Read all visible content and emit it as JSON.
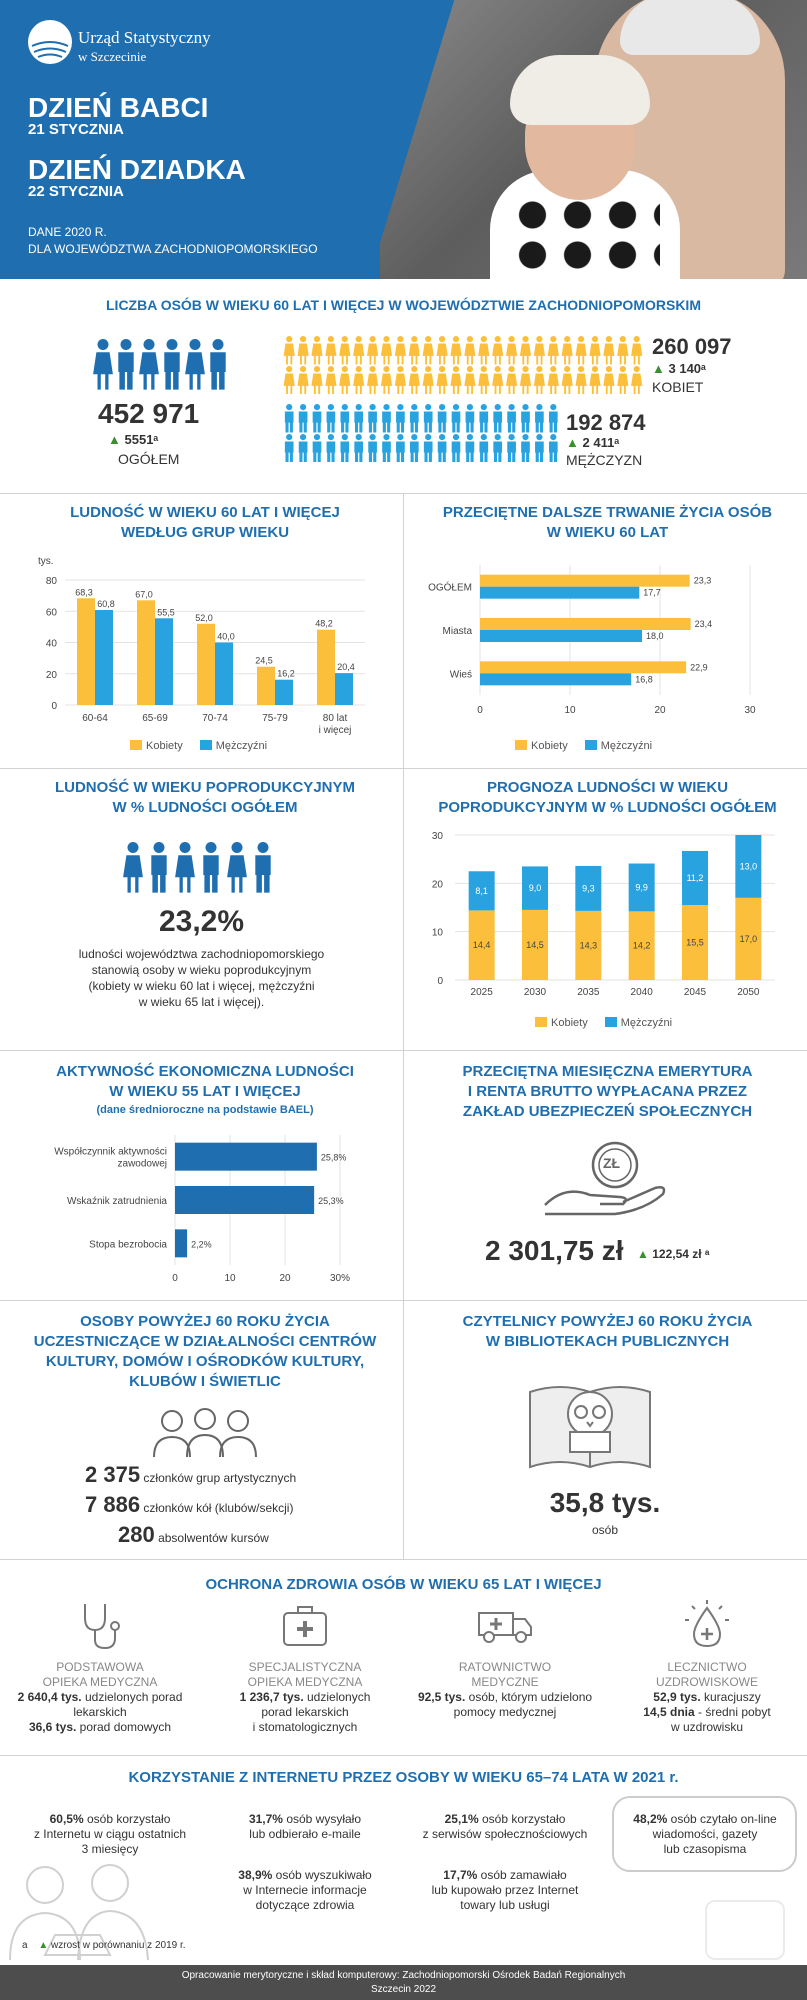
{
  "header": {
    "logo_line1": "Urząd Statystyczny",
    "logo_line2": "w Szczecinie",
    "title1": "DZIEŃ BABCI",
    "date1": "21 STYCZNIA",
    "title2": "DZIEŃ DZIADKA",
    "date2": "22 STYCZNIA",
    "data_line1": "DANE 2020 R.",
    "data_line2": "DLA WOJEWÓDZTWA ZACHODNIOPOMORSKIEGO"
  },
  "colors": {
    "blue": "#1f6fb0",
    "yellow": "#fbbf3b",
    "cyan": "#29a3e0",
    "green": "#3a8f2e"
  },
  "population": {
    "title": "LICZBA OSÓB W WIEKU 60 LAT I WIĘCEJ W WOJEWÓDZTWIE ZACHODNIOPOMORSKIM",
    "total": "452 971",
    "total_change": "5551ᵃ",
    "total_label": "OGÓŁEM",
    "women": "260 097",
    "women_change": "3 140ᵃ",
    "women_label": "KOBIET",
    "men": "192 874",
    "men_change": "2 411ᵃ",
    "men_label": "MĘŻCZYZN"
  },
  "age_groups": {
    "title_l1": "LUDNOŚĆ W WIEKU 60 LAT I WIĘCEJ",
    "title_l2": "WEDŁUG GRUP WIEKU",
    "unit": "tys.",
    "legend_women": "Kobiety",
    "legend_men": "Mężczyźni"
  },
  "life_exp": {
    "title_l1": "PRZECIĘTNE DALSZE TRWANIE ŻYCIA OSÓB",
    "title_l2": "W WIEKU 60 LAT",
    "legend_women": "Kobiety",
    "legend_men": "Mężczyźni"
  },
  "post_working": {
    "title_l1": "LUDNOŚĆ W WIEKU POPRODUKCYJNYM",
    "title_l2": "W % LUDNOŚCI OGÓŁEM",
    "value": "23,2%",
    "desc_l1": "ludności województwa zachodniopomorskiego",
    "desc_l2": "stanowią osoby w wieku poprodukcyjnym",
    "desc_l3": "(kobiety w wieku 60 lat i więcej, mężczyźni",
    "desc_l4": "w wieku 65 lat i więcej)."
  },
  "forecast": {
    "title_l1": "PROGNOZA LUDNOŚCI W WIEKU",
    "title_l2": "POPRODUKCYJNYM W % LUDNOŚCI OGÓŁEM",
    "legend_women": "Kobiety",
    "legend_men": "Mężczyźni"
  },
  "activity": {
    "title_l1": "AKTYWNOŚĆ EKONOMICZNA LUDNOŚCI",
    "title_l2": "W WIEKU 55 LAT I WIĘCEJ",
    "subtitle": "(dane średnioroczne na podstawie BAEL)"
  },
  "pension": {
    "title_l1": "PRZECIĘTNA MIESIĘCZNA EMERYTURA",
    "title_l2": "I RENTA BRUTTO WYPŁACANA PRZEZ",
    "title_l3": "ZAKŁAD UBEZPIECZEŃ SPOŁECZNYCH",
    "coin": "ZŁ",
    "value": "2 301,75 zł",
    "change": "122,54 zł ᵃ"
  },
  "culture": {
    "title_l1": "OSOBY POWYŻEJ 60 ROKU ŻYCIA",
    "title_l2": "UCZESTNICZĄCE W DZIAŁALNOŚCI CENTRÓW",
    "title_l3": "KULTURY, DOMÓW I OŚRODKÓW KULTURY,",
    "title_l4": "KLUBÓW I ŚWIETLIC",
    "r1_num": "2 375",
    "r1_txt": "członków grup artystycznych",
    "r2_num": "7 886",
    "r2_txt": "członków kół (klubów/sekcji)",
    "r3_num": "280",
    "r3_txt": "absolwentów kursów"
  },
  "library": {
    "title_l1": "CZYTELNICY POWYŻEJ 60 ROKU ŻYCIA",
    "title_l2": "W BIBLIOTEKACH PUBLICZNYCH",
    "value": "35,8 tys.",
    "unit": "osób"
  },
  "health": {
    "title": "OCHRONA ZDROWIA OSÓB W WIEKU 65 LAT I WIĘCEJ",
    "c1_t1": "PODSTAWOWA",
    "c1_t2": "OPIEKA MEDYCZNA",
    "c1_l1b": "2 640,4 tys.",
    "c1_l1": " udzielonych porad",
    "c1_l2": "lekarskich",
    "c1_l3b": "36,6 tys.",
    "c1_l3": " porad domowych",
    "c2_t1": "SPECJALISTYCZNA",
    "c2_t2": "OPIEKA MEDYCZNA",
    "c2_l1b": "1 236,7 tys.",
    "c2_l1": " udzielonych",
    "c2_l2": "porad lekarskich",
    "c2_l3": "i stomatologicznych",
    "c3_t1": "RATOWNICTWO",
    "c3_t2": "MEDYCZNE",
    "c3_l1b": "92,5 tys.",
    "c3_l1": " osób, którym udzielono",
    "c3_l2": "pomocy medycznej",
    "c4_t1": "LECZNICTWO",
    "c4_t2": "UZDROWISKOWE",
    "c4_l1b": "52,9 tys.",
    "c4_l1": " kuracjuszy",
    "c4_l2b": "14,5 dnia",
    "c4_l2": " - średni pobyt",
    "c4_l3": "w uzdrowisku"
  },
  "internet": {
    "title": "KORZYSTANIE Z INTERNETU PRZEZ OSOBY W WIEKU 65–74 LATA W 2021 r.",
    "i1b": "60,5%",
    "i1": " osób korzystało",
    "i1_l2": "z Internetu w ciągu ostatnich",
    "i1_l3": "3 miesięcy",
    "i2b": "31,7%",
    "i2": " osób wysyłało",
    "i2_l2": "lub odbierało e-maile",
    "i3b": "25,1%",
    "i3": " osób korzystało",
    "i3_l2": "z serwisów społecznościowych",
    "i4b": "48,2%",
    "i4": " osób czytało on-line",
    "i4_l2": "wiadomości, gazety",
    "i4_l3": "lub czasopisma",
    "i5b": "38,9%",
    "i5": " osób wyszukiwało",
    "i5_l2": "w Internecie informacje",
    "i5_l3": "dotyczące zdrowia",
    "i6b": "17,7%",
    "i6": " osób zamawiało",
    "i6_l2": "lub kupowało przez Internet",
    "i6_l3": "towary lub usługi"
  },
  "footnote": {
    "mark": "a",
    "text": "wzrost w porównaniu z 2019 r."
  },
  "footer": {
    "line1": "Opracowanie merytoryczne i skład komputerowy: Zachodniopomorski Ośrodek Badań Regionalnych",
    "line2": "Szczecin 2022"
  },
  "chart_data": [
    {
      "type": "bar",
      "title": "LUDNOŚĆ W WIEKU 60 LAT I WIĘCEJ WEDŁUG GRUP WIEKU",
      "ylabel": "tys.",
      "categories": [
        "60-64",
        "65-69",
        "70-74",
        "75-79",
        "80 lat i więcej"
      ],
      "series": [
        {
          "name": "Kobiety",
          "values": [
            68.3,
            67.0,
            52.0,
            24.5,
            48.2
          ],
          "labels": [
            "68,3",
            "67,0",
            "52,0",
            "24,5",
            "48,2"
          ]
        },
        {
          "name": "Mężczyźni",
          "values": [
            60.8,
            55.5,
            40.0,
            16.2,
            20.4
          ],
          "labels": [
            "60,8",
            "55,5",
            "40,0",
            "16,2",
            "20,4"
          ]
        }
      ],
      "ylim": [
        0,
        80
      ],
      "yticks": [
        "0",
        "20",
        "40",
        "60",
        "80"
      ],
      "grid": true,
      "legend": "bottom"
    },
    {
      "type": "bar",
      "orientation": "horizontal",
      "title": "PRZECIĘTNE DALSZE TRWANIE ŻYCIA OSÓB W WIEKU 60 LAT",
      "categories": [
        "OGÓŁEM",
        "Miasta",
        "Wieś"
      ],
      "series": [
        {
          "name": "Kobiety",
          "values": [
            23.3,
            23.4,
            22.9
          ],
          "labels": [
            "23,3",
            "23,4",
            "22,9"
          ]
        },
        {
          "name": "Mężczyźni",
          "values": [
            17.7,
            18.0,
            16.8
          ],
          "labels": [
            "17,7",
            "18,0",
            "16,8"
          ]
        }
      ],
      "xlim": [
        0,
        30
      ],
      "xticks": [
        "0",
        "10",
        "20",
        "30"
      ],
      "grid": true,
      "legend": "bottom"
    },
    {
      "type": "bar",
      "stacked": true,
      "title": "PROGNOZA LUDNOŚCI W WIEKU POPRODUKCYJNYM W % LUDNOŚCI OGÓŁEM",
      "categories": [
        "2025",
        "2030",
        "2035",
        "2040",
        "2045",
        "2050"
      ],
      "series": [
        {
          "name": "Kobiety",
          "values": [
            14.4,
            14.5,
            14.3,
            14.2,
            15.5,
            17.0
          ],
          "labels": [
            "14,4",
            "14,5",
            "14,3",
            "14,2",
            "15,5",
            "17,0"
          ]
        },
        {
          "name": "Mężczyźni",
          "values": [
            8.1,
            9.0,
            9.3,
            9.9,
            11.2,
            13.0
          ],
          "labels": [
            "8,1",
            "9,0",
            "9,3",
            "9,9",
            "11,2",
            "13,0"
          ]
        }
      ],
      "ylim": [
        0,
        30
      ],
      "yticks": [
        "0",
        "10",
        "20",
        "30"
      ],
      "grid": true,
      "legend": "bottom"
    },
    {
      "type": "bar",
      "orientation": "horizontal",
      "title": "AKTYWNOŚĆ EKONOMICZNA LUDNOŚCI W WIEKU 55 LAT I WIĘCEJ",
      "categories": [
        "Współczynnik aktywności zawodowej",
        "Wskaźnik zatrudnienia",
        "Stopa bezrobocia"
      ],
      "values": [
        25.8,
        25.3,
        2.2
      ],
      "labels": [
        "25,8%",
        "25,3%",
        "2,2%"
      ],
      "xlim": [
        0,
        30
      ],
      "xticks": [
        "0",
        "10",
        "20",
        "30%"
      ],
      "grid": true
    }
  ]
}
